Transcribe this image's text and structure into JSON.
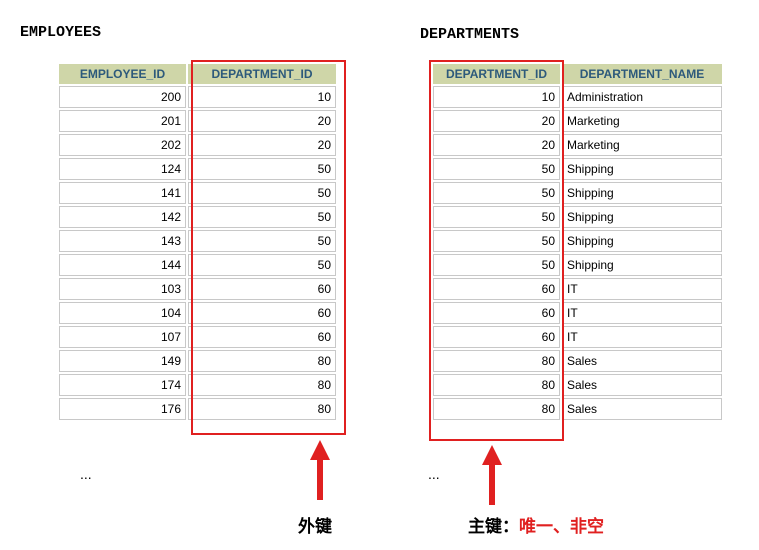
{
  "employees": {
    "title": "EMPLOYEES",
    "headers": [
      "EMPLOYEE_ID",
      "DEPARTMENT_ID"
    ],
    "rows": [
      [
        "200",
        "10"
      ],
      [
        "201",
        "20"
      ],
      [
        "202",
        "20"
      ],
      [
        "124",
        "50"
      ],
      [
        "141",
        "50"
      ],
      [
        "142",
        "50"
      ],
      [
        "143",
        "50"
      ],
      [
        "144",
        "50"
      ],
      [
        "103",
        "60"
      ],
      [
        "104",
        "60"
      ],
      [
        "107",
        "60"
      ],
      [
        "149",
        "80"
      ],
      [
        "174",
        "80"
      ],
      [
        "176",
        "80"
      ]
    ],
    "more": "..."
  },
  "departments": {
    "title": "DEPARTMENTS",
    "headers": [
      "DEPARTMENT_ID",
      "DEPARTMENT_NAME"
    ],
    "rows": [
      [
        "10",
        "Administration"
      ],
      [
        "20",
        "Marketing"
      ],
      [
        "20",
        "Marketing"
      ],
      [
        "50",
        "Shipping"
      ],
      [
        "50",
        "Shipping"
      ],
      [
        "50",
        "Shipping"
      ],
      [
        "50",
        "Shipping"
      ],
      [
        "50",
        "Shipping"
      ],
      [
        "60",
        "IT"
      ],
      [
        "60",
        "IT"
      ],
      [
        "60",
        "IT"
      ],
      [
        "80",
        "Sales"
      ],
      [
        "80",
        "Sales"
      ],
      [
        "80",
        "Sales"
      ]
    ],
    "more": "..."
  },
  "annotations": {
    "foreign_key": "外键",
    "primary_key": "主键：",
    "primary_key_note": "唯一、非空"
  },
  "colors": {
    "header_bg": "#cfd6a8",
    "header_text": "#2d5a7b",
    "highlight": "#e02020"
  }
}
